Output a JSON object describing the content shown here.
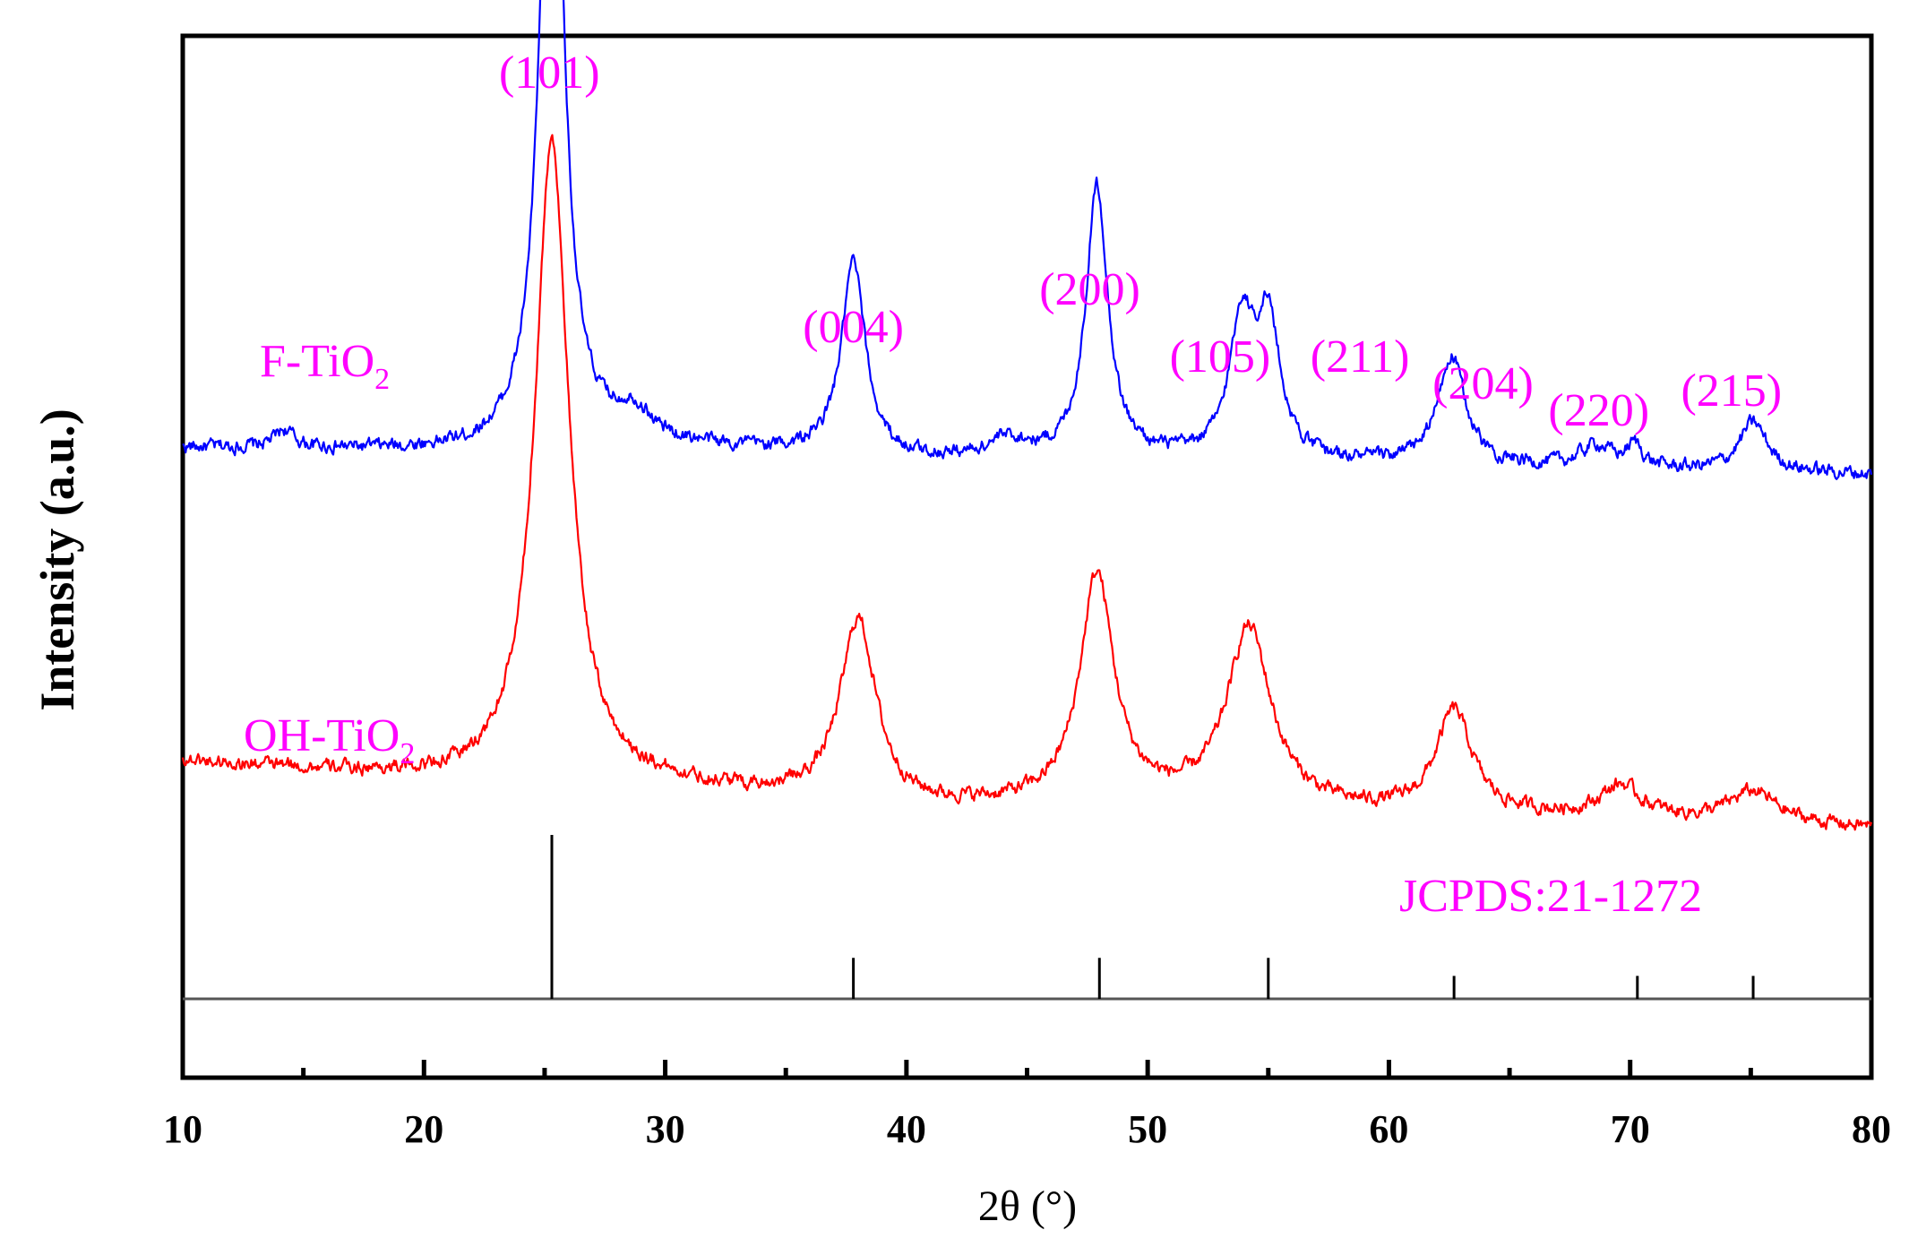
{
  "chart_data": {
    "type": "line",
    "title": "",
    "xlabel": "2θ (°)",
    "ylabel": "Intensity (a.u.)",
    "xlim": [
      10,
      80
    ],
    "xticks": [
      10,
      20,
      30,
      40,
      50,
      60,
      70,
      80
    ],
    "minor_xticks": [
      15,
      25,
      35,
      45,
      55,
      65,
      75
    ],
    "grid": false,
    "legend": "none",
    "series": [
      {
        "name": "F-TiO2",
        "label_main": "F-TiO",
        "label_sub": "2",
        "color": "#0000ff",
        "baseline": [
          [
            10,
            0.1
          ],
          [
            22,
            0.095
          ],
          [
            28,
            0.105
          ],
          [
            40,
            0.085
          ],
          [
            50,
            0.085
          ],
          [
            60,
            0.08
          ],
          [
            70,
            0.075
          ],
          [
            80,
            0.07
          ]
        ],
        "peaks": [
          {
            "x": 14.2,
            "height": 0.02,
            "width": 0.5
          },
          {
            "x": 25.3,
            "height": 0.88,
            "width": 0.55
          },
          {
            "x": 28.7,
            "height": 0.03,
            "width": 0.8
          },
          {
            "x": 37.8,
            "height": 0.215,
            "width": 0.6
          },
          {
            "x": 44.2,
            "height": 0.02,
            "width": 1.0
          },
          {
            "x": 47.9,
            "height": 0.305,
            "width": 0.55
          },
          {
            "x": 53.9,
            "height": 0.15,
            "width": 0.6
          },
          {
            "x": 55.0,
            "height": 0.15,
            "width": 0.6
          },
          {
            "x": 62.6,
            "height": 0.12,
            "width": 0.7
          },
          {
            "x": 68.6,
            "height": 0.025,
            "width": 0.8
          },
          {
            "x": 70.2,
            "height": 0.025,
            "width": 0.4
          },
          {
            "x": 75.1,
            "height": 0.055,
            "width": 0.7
          }
        ]
      },
      {
        "name": "OH-TiO2",
        "label_main": "OH-TiO",
        "label_sub": "2",
        "color": "#ff0000",
        "baseline": [
          [
            10,
            0.11
          ],
          [
            22,
            0.085
          ],
          [
            30,
            0.08
          ],
          [
            40,
            0.055
          ],
          [
            50,
            0.06
          ],
          [
            60,
            0.05
          ],
          [
            70,
            0.045
          ],
          [
            80,
            0.035
          ]
        ],
        "peaks": [
          {
            "x": 25.3,
            "height": 0.72,
            "width": 0.85
          },
          {
            "x": 38.0,
            "height": 0.205,
            "width": 0.9
          },
          {
            "x": 47.9,
            "height": 0.255,
            "width": 0.85
          },
          {
            "x": 54.2,
            "height": 0.2,
            "width": 1.1
          },
          {
            "x": 62.7,
            "height": 0.115,
            "width": 0.9
          },
          {
            "x": 69.6,
            "height": 0.035,
            "width": 1.0
          },
          {
            "x": 75.1,
            "height": 0.035,
            "width": 1.2
          }
        ]
      }
    ],
    "reference": {
      "label": "JCPDS:21-1272",
      "color": "#000000",
      "lines": [
        {
          "x": 25.3,
          "height": 100
        },
        {
          "x": 37.8,
          "height": 25
        },
        {
          "x": 48.0,
          "height": 25
        },
        {
          "x": 55.0,
          "height": 25
        },
        {
          "x": 62.7,
          "height": 14
        },
        {
          "x": 70.3,
          "height": 14
        },
        {
          "x": 75.1,
          "height": 14
        }
      ]
    },
    "annotations": [
      {
        "text": "(101)",
        "x": 25.2
      },
      {
        "text": "(004)",
        "x": 37.8
      },
      {
        "text": "(200)",
        "x": 47.6
      },
      {
        "text": "(105)",
        "x": 53.0
      },
      {
        "text": "(211)",
        "x": 58.8
      },
      {
        "text": "(204)",
        "x": 63.9
      },
      {
        "text": "(220)",
        "x": 68.7
      },
      {
        "text": "(215)",
        "x": 74.2
      }
    ]
  }
}
